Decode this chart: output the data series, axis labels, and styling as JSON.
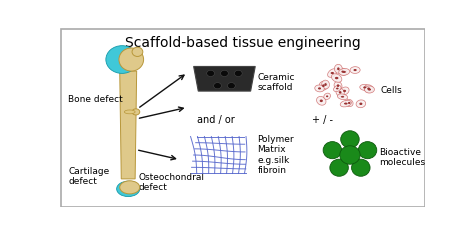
{
  "title": "Scaffold-based tissue engineering",
  "title_fontsize": 10,
  "border_color": "#aaaaaa",
  "labels": {
    "bone_defect": "Bone defect",
    "cartilage_defect": "Cartilage\ndefect",
    "osteochondral_defect": "Osteochondral\ndefect",
    "ceramic_scaffold": "Ceramic\nscaffold",
    "cells": "Cells",
    "and_or": "and / or",
    "plus_minus": "+ / -",
    "polymer_matrix": "Polymer\nMatrix\ne.g.silk\nfibroin",
    "bioactive": "Bioactive\nmolecules"
  },
  "label_fontsize": 6.5,
  "arrow_color": "#111111",
  "bone_color_light": "#dfc98a",
  "bone_color_dark": "#b8973a",
  "cartilage_color": "#40c8d8",
  "scaffold_color": "#2a2a2a",
  "cell_outline_color": "#cc6666",
  "cell_fill_color": "#f8eeee",
  "cell_nucleus_color": "#993333",
  "polymer_color": "#5566cc",
  "bioactive_node_color": "#1a8a1a",
  "bioactive_edge_color": "#cc3311"
}
